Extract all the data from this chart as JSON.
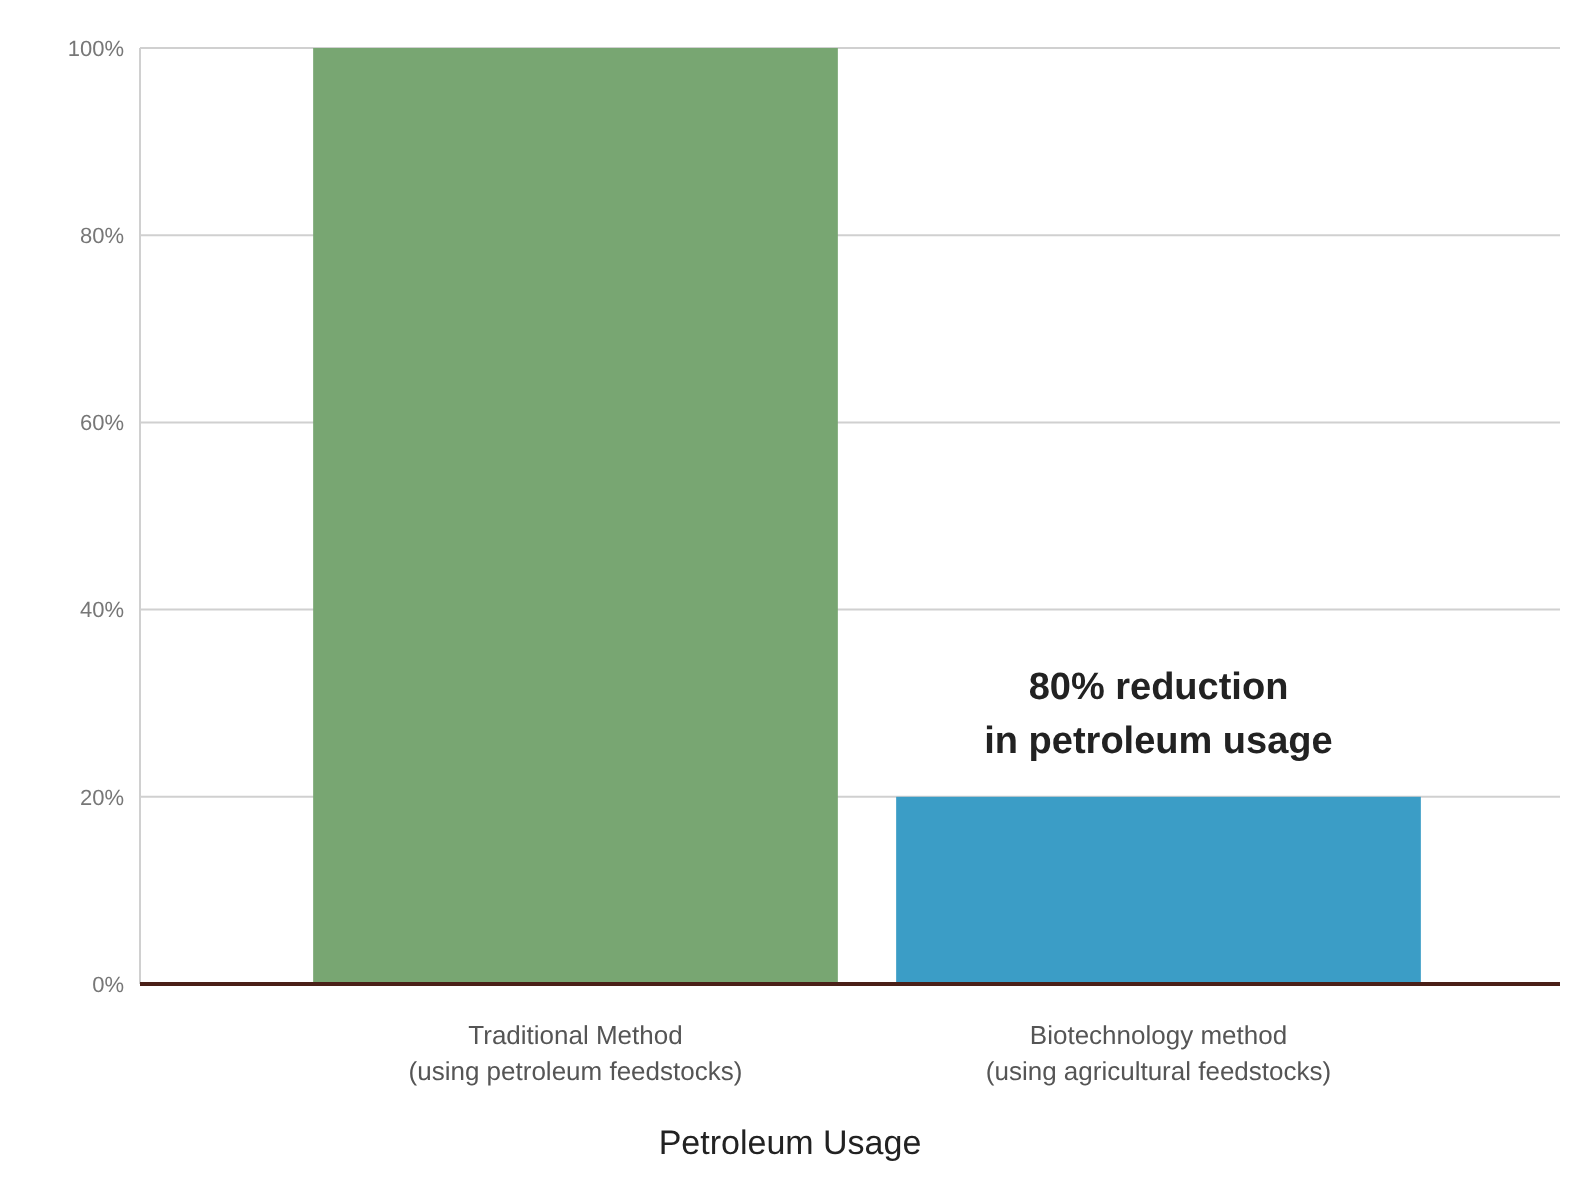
{
  "chart_data": {
    "type": "bar",
    "xlabel": "Petroleum Usage",
    "categories": [
      "Traditional Method\n(using petroleum feedstocks)",
      "Biotechnology method\n(using agricultural feedstocks)"
    ],
    "values": [
      100,
      20
    ],
    "colors": [
      "#78a672",
      "#3b9dc6"
    ],
    "ylim": [
      0,
      100
    ],
    "yticks": [
      {
        "value": 0,
        "label": "0%"
      },
      {
        "value": 20,
        "label": "20%"
      },
      {
        "value": 40,
        "label": "40%"
      },
      {
        "value": 60,
        "label": "60%"
      },
      {
        "value": 80,
        "label": "80%"
      },
      {
        "value": 100,
        "label": "100%"
      }
    ],
    "grid": "y",
    "annotations": [
      {
        "text": "80% reduction\nin petroleum usage",
        "x": "Biotechnology method\n(using agricultural feedstocks)",
        "y": 20
      }
    ]
  }
}
